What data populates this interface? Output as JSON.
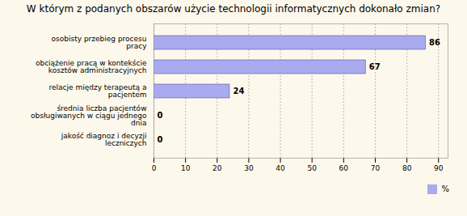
{
  "chart_data": {
    "type": "bar",
    "orientation": "horizontal",
    "title": "W którym z podanych obszarów użycie technologii informatycznych dokonało zmian?",
    "categories": [
      "osobisty przebieg procesu pracy",
      "obciążenie pracą w kontekście kosztów administracyjnych",
      "relacje między terapeutą a pacjentem",
      "średnia liczba pacjentów obsługiwanych w ciągu jednego dnia",
      "jakość diagnoz i decyzji leczniczych"
    ],
    "series": [
      {
        "name": "%",
        "color": "#aaaaee",
        "values": [
          86,
          67,
          24,
          0,
          0
        ]
      }
    ],
    "xlim": [
      0,
      93
    ],
    "xticks": [
      0,
      10,
      20,
      30,
      40,
      50,
      60,
      70,
      80,
      90
    ],
    "grid": true,
    "data_labels": true,
    "legend": "lower right"
  }
}
